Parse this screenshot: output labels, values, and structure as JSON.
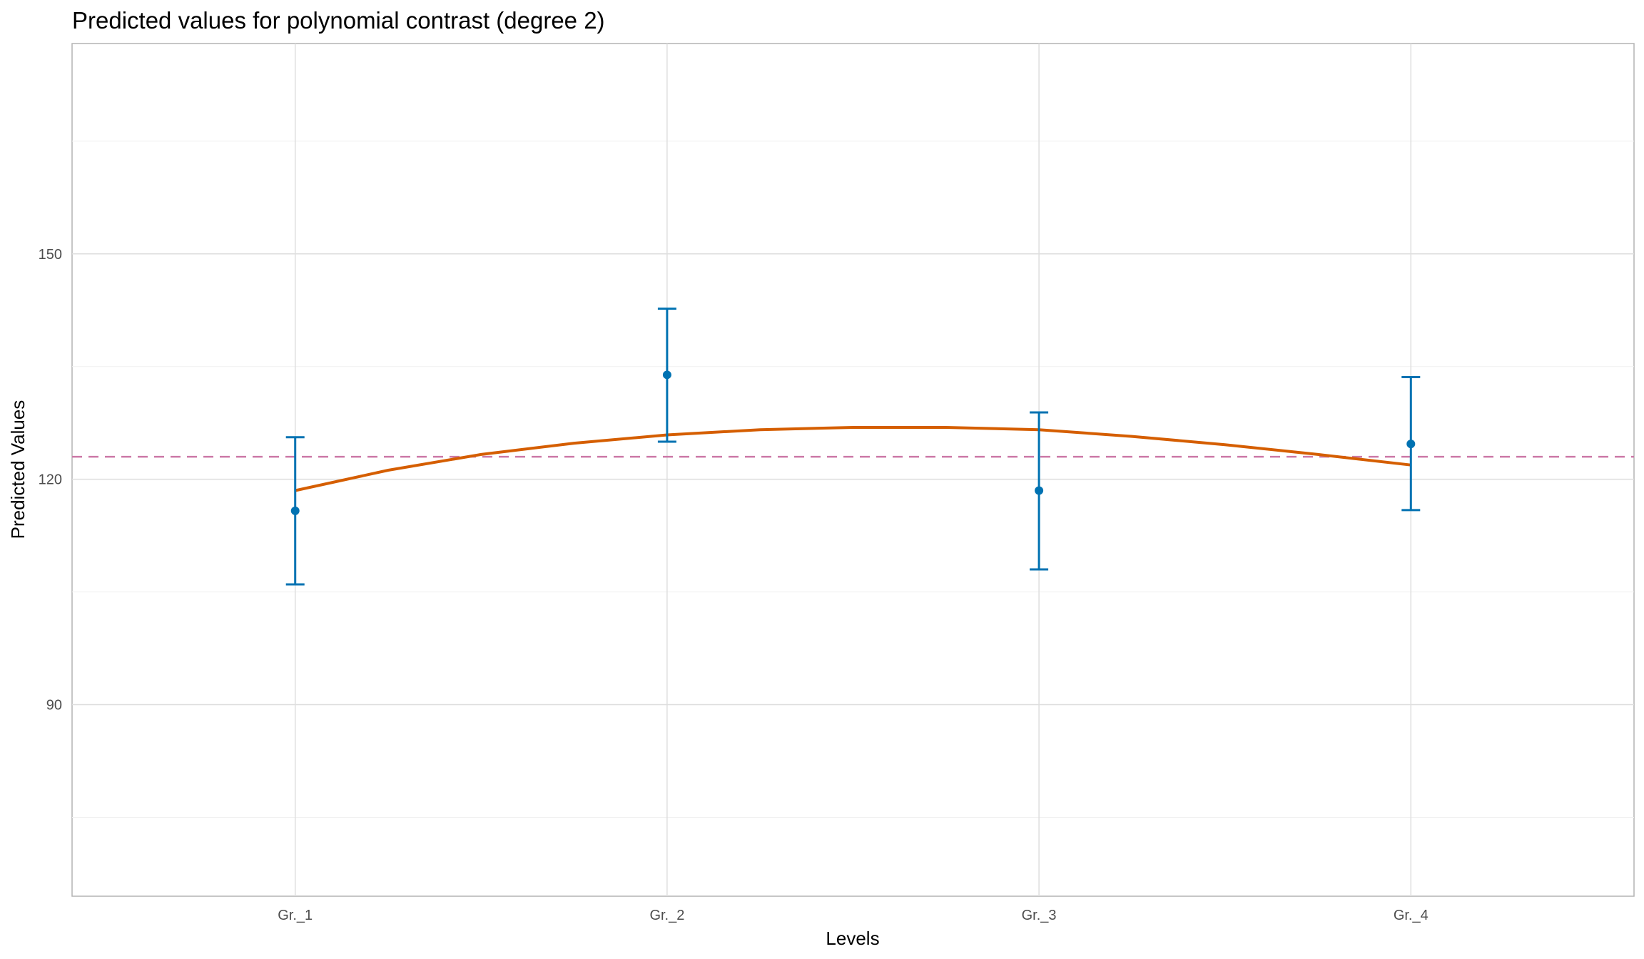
{
  "chart_data": {
    "type": "scatter",
    "title": "Predicted values for polynomial contrast (degree 2)",
    "xlabel": "Levels",
    "ylabel": "Predicted Values",
    "categories": [
      "Gr._1",
      "Gr._2",
      "Gr._3",
      "Gr._4"
    ],
    "ylim": [
      64.5,
      178
    ],
    "yticks": [
      90,
      120,
      150
    ],
    "grid": true,
    "reference_line": {
      "y": 123,
      "style": "dashed",
      "color": "#CC79A7"
    },
    "points": {
      "color": "#0072B2",
      "values": [
        115.8,
        133.9,
        118.5,
        124.7
      ],
      "lower": [
        106.0,
        125.0,
        108.0,
        115.9
      ],
      "upper": [
        125.6,
        142.7,
        128.9,
        133.6
      ]
    },
    "fit_curve": {
      "color": "#D55E00",
      "degree": 2,
      "x": [
        1,
        1.25,
        1.5,
        1.75,
        2,
        2.25,
        2.5,
        2.75,
        3,
        3.25,
        3.5,
        3.75,
        4
      ],
      "values": [
        118.5,
        121.2,
        123.3,
        124.8,
        125.9,
        126.6,
        126.9,
        126.9,
        126.6,
        125.7,
        124.6,
        123.3,
        121.9
      ]
    }
  }
}
